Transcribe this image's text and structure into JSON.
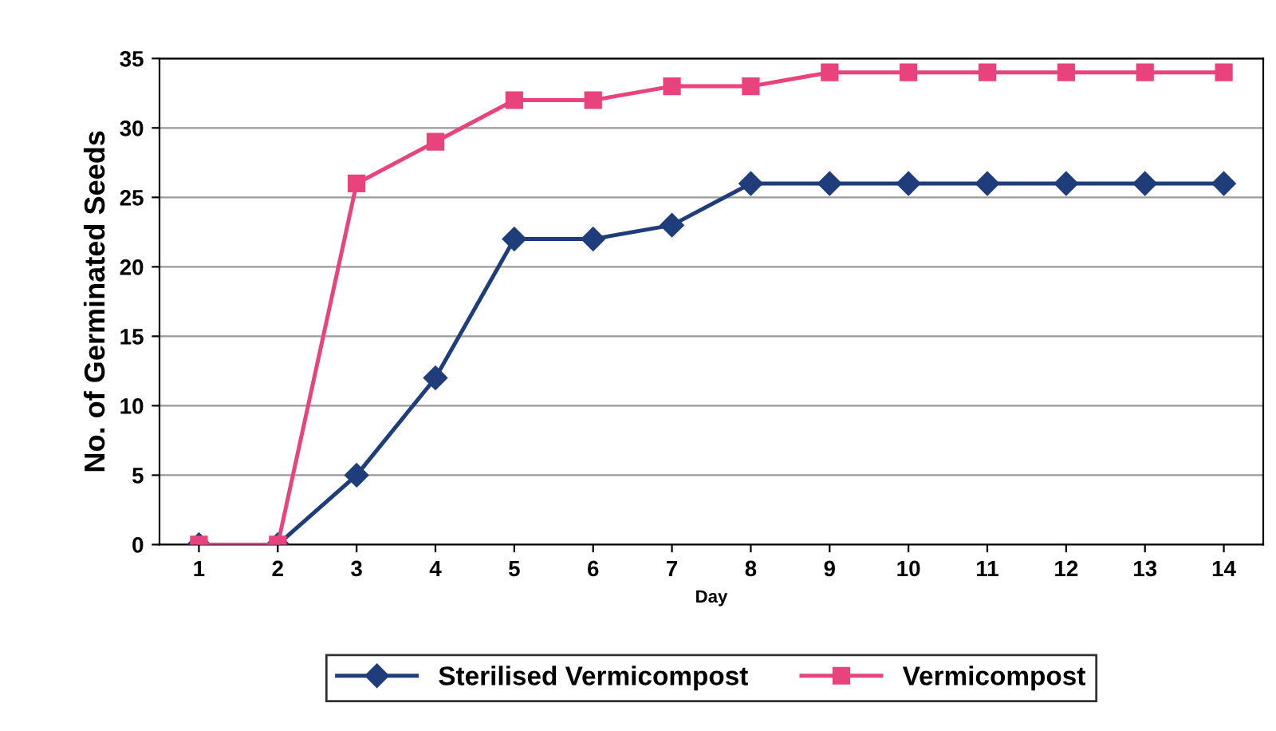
{
  "chart_data": {
    "type": "line",
    "xlabel": "Day",
    "ylabel": "No. of Germinated Seeds",
    "categories": [
      "1",
      "2",
      "3",
      "4",
      "5",
      "6",
      "7",
      "8",
      "9",
      "10",
      "11",
      "12",
      "13",
      "14"
    ],
    "series": [
      {
        "name": "Sterilised Vermicompost",
        "color": "#1f3d7a",
        "marker": "diamond",
        "values": [
          0,
          0,
          5,
          12,
          22,
          22,
          23,
          26,
          26,
          26,
          26,
          26,
          26,
          26
        ]
      },
      {
        "name": "Vermicompost",
        "color": "#e8437d",
        "marker": "square",
        "values": [
          0,
          0,
          26,
          29,
          32,
          32,
          33,
          33,
          34,
          34,
          34,
          34,
          34,
          34
        ]
      }
    ],
    "ylim": [
      0,
      35
    ],
    "yticks": [
      0,
      5,
      10,
      15,
      20,
      25,
      30,
      35
    ],
    "grid": "y",
    "legend": "bottom",
    "line_style": "solid"
  }
}
